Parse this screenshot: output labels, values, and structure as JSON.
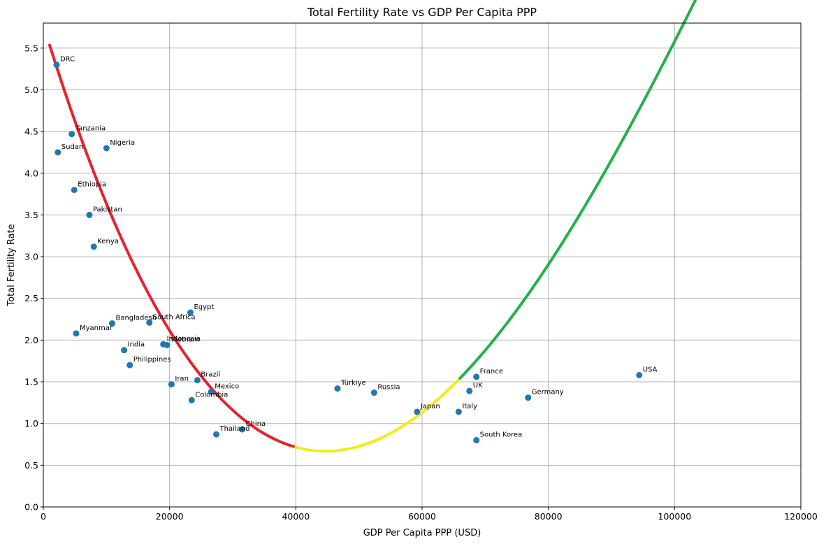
{
  "chart_data": {
    "type": "scatter",
    "title": "Total Fertility Rate vs GDP Per Capita PPP",
    "xlabel": "GDP Per Capita PPP (USD)",
    "ylabel": "Total Fertility Rate",
    "xlim": [
      0,
      120000
    ],
    "ylim": [
      0,
      5.8
    ],
    "xticks": [
      0,
      20000,
      40000,
      60000,
      80000,
      100000,
      120000
    ],
    "xtick_labels": [
      "0",
      "20000",
      "40000",
      "60000",
      "80000",
      "100000",
      "120000"
    ],
    "yticks": [
      0,
      0.5,
      1,
      1.5,
      2,
      2.5,
      3,
      3.5,
      4,
      4.5,
      5,
      5.5
    ],
    "ytick_labels": [
      "0.0",
      "0.5",
      "1.0",
      "1.5",
      "2.0",
      "2.5",
      "3.0",
      "3.5",
      "4.0",
      "4.5",
      "5.0",
      "5.5"
    ],
    "grid": true,
    "point_color": "#1f77b4",
    "points": [
      {
        "label": "DRC",
        "x": 2100,
        "y": 5.3
      },
      {
        "label": "Tanzania",
        "x": 4500,
        "y": 4.47
      },
      {
        "label": "Sudan",
        "x": 2300,
        "y": 4.25
      },
      {
        "label": "Nigeria",
        "x": 10000,
        "y": 4.3
      },
      {
        "label": "Ethiopia",
        "x": 4900,
        "y": 3.8
      },
      {
        "label": "Pakistan",
        "x": 7300,
        "y": 3.5
      },
      {
        "label": "Kenya",
        "x": 8000,
        "y": 3.12
      },
      {
        "label": "Egypt",
        "x": 23300,
        "y": 2.33
      },
      {
        "label": "Bangladesh",
        "x": 10900,
        "y": 2.2
      },
      {
        "label": "South Africa",
        "x": 16800,
        "y": 2.21
      },
      {
        "label": "Myanmar",
        "x": 5200,
        "y": 2.08
      },
      {
        "label": "Indonesia",
        "x": 19000,
        "y": 1.95
      },
      {
        "label": "Vietnam",
        "x": 19600,
        "y": 1.94
      },
      {
        "label": "India",
        "x": 12800,
        "y": 1.88
      },
      {
        "label": "Philippines",
        "x": 13700,
        "y": 1.7
      },
      {
        "label": "Brazil",
        "x": 24400,
        "y": 1.52
      },
      {
        "label": "Iran",
        "x": 20300,
        "y": 1.47
      },
      {
        "label": "Mexico",
        "x": 26600,
        "y": 1.38
      },
      {
        "label": "Colombia",
        "x": 23500,
        "y": 1.28
      },
      {
        "label": "China",
        "x": 31500,
        "y": 0.93
      },
      {
        "label": "Thailand",
        "x": 27400,
        "y": 0.87
      },
      {
        "label": "Türkiye",
        "x": 46600,
        "y": 1.42
      },
      {
        "label": "Russia",
        "x": 52400,
        "y": 1.37
      },
      {
        "label": "Japan",
        "x": 59200,
        "y": 1.14
      },
      {
        "label": "Italy",
        "x": 65800,
        "y": 1.14
      },
      {
        "label": "UK",
        "x": 67500,
        "y": 1.39
      },
      {
        "label": "France",
        "x": 68600,
        "y": 1.56
      },
      {
        "label": "South Korea",
        "x": 68600,
        "y": 0.8
      },
      {
        "label": "Germany",
        "x": 76800,
        "y": 1.31
      },
      {
        "label": "USA",
        "x": 94400,
        "y": 1.58
      }
    ],
    "trend_segments": [
      {
        "color": "#e8212e",
        "x_start": 1000,
        "x_end": 40000
      },
      {
        "color": "#f2ec1a",
        "x_start": 40000,
        "x_end": 66000
      },
      {
        "color": "#22b14c",
        "x_start": 66000,
        "x_end": 111000
      }
    ]
  }
}
